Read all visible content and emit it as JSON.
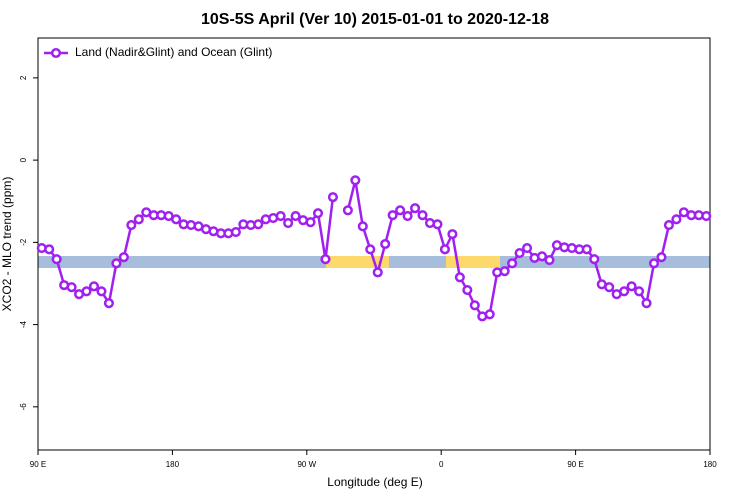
{
  "chart_data": {
    "type": "line",
    "title": "10S-5S April (Ver 10)   2015-01-01 to 2020-12-18",
    "x_label": "Longitude (deg E)",
    "y_label": "XCO2 - MLO trend (ppm)",
    "xlim": [
      90,
      540
    ],
    "ylim": [
      -7.05,
      2.97
    ],
    "xticks": [
      {
        "value": 90,
        "label": "90 E"
      },
      180,
      {
        "value": 270,
        "label": "90 W"
      },
      {
        "value": 360,
        "label": "0"
      },
      {
        "value": 450,
        "label": "90 E"
      },
      {
        "value": 540,
        "label": "180"
      }
    ],
    "yticks": [
      -6,
      -4,
      -2,
      0,
      2
    ],
    "legend": "top-left",
    "x": [
      92.5,
      97.5,
      102.5,
      107.5,
      112.5,
      117.5,
      122.5,
      127.5,
      132.5,
      137.5,
      142.5,
      147.5,
      152.5,
      157.5,
      162.5,
      167.5,
      172.5,
      177.5,
      182.5,
      187.5,
      192.5,
      197.5,
      202.5,
      207.5,
      212.5,
      217.5,
      222.5,
      227.5,
      232.5,
      237.5,
      242.5,
      247.5,
      252.5,
      257.5,
      262.5,
      267.5,
      272.5,
      277.5,
      282.5,
      287.5,
      292.5,
      297.5,
      302.5,
      307.5,
      312.5,
      317.5,
      322.5,
      327.5,
      332.5,
      337.5,
      342.5,
      347.5,
      352.5,
      357.5,
      362.5,
      367.5,
      372.5,
      377.5,
      382.5,
      387.5,
      392.5,
      397.5,
      402.5,
      407.5,
      412.5,
      417.5,
      422.5,
      427.5,
      432.5,
      437.5,
      442.5,
      447.5,
      452.5,
      457.5,
      462.5,
      467.5,
      472.5,
      477.5,
      482.5,
      487.5,
      492.5,
      497.5,
      502.5,
      507.5,
      512.5,
      517.5,
      522.5,
      527.5,
      532.5,
      537.5
    ],
    "series": [
      {
        "name": "Land (Nadir&Glint) and Ocean (Glint)",
        "color": "#a020f0",
        "values": [
          -2.14,
          -2.17,
          -2.41,
          -3.04,
          -3.09,
          -3.26,
          -3.19,
          -3.07,
          -3.19,
          -3.48,
          -2.51,
          -2.36,
          -1.58,
          -1.44,
          -1.27,
          -1.34,
          -1.34,
          -1.36,
          -1.44,
          -1.56,
          -1.58,
          -1.61,
          -1.68,
          -1.73,
          -1.78,
          -1.78,
          -1.75,
          -1.56,
          -1.58,
          -1.56,
          -1.44,
          -1.41,
          -1.36,
          -1.53,
          -1.36,
          -1.46,
          -1.51,
          -1.29,
          -2.41,
          -0.9,
          null,
          -1.22,
          -0.49,
          -1.61,
          -2.17,
          -2.73,
          -2.04,
          -1.34,
          -1.22,
          -1.36,
          -1.17,
          -1.34,
          -1.53,
          -1.56,
          -2.17,
          -1.8,
          -2.85,
          -3.16,
          -3.53,
          -3.8,
          -3.75,
          -2.73,
          -2.7,
          -2.51,
          -2.26,
          -2.14,
          -2.38,
          -2.34,
          -2.43,
          -2.07,
          -2.12,
          -2.14,
          -2.17,
          -2.17,
          -2.41,
          -3.02,
          -3.09,
          -3.26,
          -3.19,
          -3.07,
          -3.19,
          -3.48,
          -2.51,
          -2.36,
          -1.58,
          -1.44,
          -1.27,
          -1.34,
          -1.34,
          -1.36
        ]
      }
    ]
  }
}
